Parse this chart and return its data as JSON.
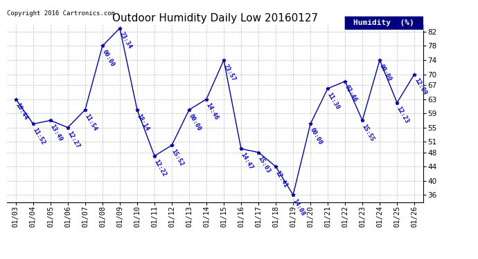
{
  "title": "Outdoor Humidity Daily Low 20160127",
  "copyright": "Copyright 2016 Cartronics.com",
  "legend_label": "Humidity  (%)",
  "x_labels": [
    "01/03",
    "01/04",
    "01/05",
    "01/06",
    "01/07",
    "01/08",
    "01/09",
    "01/10",
    "01/11",
    "01/12",
    "01/13",
    "01/14",
    "01/15",
    "01/16",
    "01/17",
    "01/18",
    "01/19",
    "01/20",
    "01/21",
    "01/22",
    "01/23",
    "01/24",
    "01/25",
    "01/26"
  ],
  "y_values": [
    63,
    56,
    57,
    55,
    60,
    78,
    83,
    60,
    47,
    50,
    60,
    63,
    74,
    49,
    48,
    44,
    36,
    56,
    66,
    68,
    57,
    74,
    62,
    70
  ],
  "point_labels": [
    "10:44",
    "11:52",
    "13:49",
    "12:27",
    "11:54",
    "00:00",
    "23:34",
    "18:14",
    "12:22",
    "15:52",
    "00:00",
    "14:46",
    "23:57",
    "14:47",
    "15:03",
    "12:41",
    "14:08",
    "00:00",
    "11:30",
    "02:46",
    "15:55",
    "00:00",
    "12:23",
    "12:09"
  ],
  "line_color": "#0000aa",
  "marker_color": "#0000aa",
  "label_color": "#0000cc",
  "grid_color": "#bbbbbb",
  "bg_color": "#ffffff",
  "plot_bg_color": "#ffffff",
  "title_color": "#000000",
  "copyright_color": "#000000",
  "ylim": [
    34,
    84
  ],
  "yticks": [
    36,
    40,
    44,
    48,
    51,
    55,
    59,
    63,
    67,
    70,
    74,
    78,
    82
  ],
  "title_fontsize": 11,
  "label_fontsize": 6.5,
  "tick_fontsize": 7.5,
  "copyright_fontsize": 6.5,
  "legend_fontsize": 8
}
